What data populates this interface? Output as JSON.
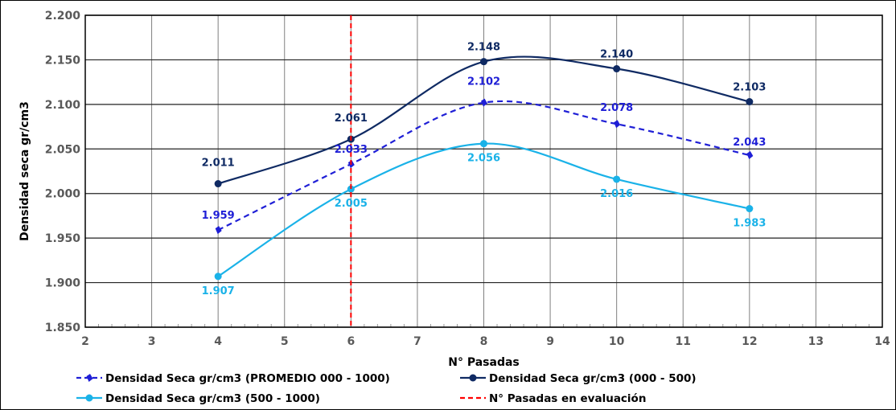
{
  "chart_data": {
    "type": "line",
    "xlabel": "N° Pasadas",
    "ylabel": "Densidad seca gr/cm3",
    "xlim": [
      2,
      14
    ],
    "ylim": [
      1.85,
      2.2
    ],
    "xticks": [
      "2",
      "3",
      "4",
      "5",
      "6",
      "7",
      "8",
      "9",
      "10",
      "11",
      "12",
      "13",
      "14"
    ],
    "yticks": [
      "1.850",
      "1.900",
      "1.950",
      "2.000",
      "2.050",
      "2.100",
      "2.150",
      "2.200"
    ],
    "grid": true,
    "legend_position": "bottom",
    "series": [
      {
        "name": "Densidad Seca gr/cm3 (PROMEDIO 000 - 1000)",
        "color": "#1f1fd6",
        "style": "dashed",
        "x": [
          4,
          6,
          8,
          10,
          12
        ],
        "y": [
          1.959,
          2.033,
          2.102,
          2.078,
          2.043
        ],
        "labels": [
          "1.959",
          "2.033",
          "2.102",
          "2.078",
          "2.043"
        ]
      },
      {
        "name": "Densidad Seca gr/cm3 (000 - 500)",
        "color": "#0f2a63",
        "style": "solid",
        "x": [
          4,
          6,
          8,
          10,
          12
        ],
        "y": [
          2.011,
          2.061,
          2.148,
          2.14,
          2.103
        ],
        "labels": [
          "2.011",
          "2.061",
          "2.148",
          "2.140",
          "2.103"
        ]
      },
      {
        "name": "Densidad Seca gr/cm3 (500 - 1000)",
        "color": "#1ab2e8",
        "style": "solid",
        "x": [
          4,
          6,
          8,
          10,
          12
        ],
        "y": [
          1.907,
          2.005,
          2.056,
          2.016,
          1.983
        ],
        "labels": [
          "1.907",
          "2.005",
          "2.056",
          "2.016",
          "1.983"
        ]
      }
    ],
    "reference_line": {
      "name": "N° Pasadas en evaluación",
      "color": "#ff0000",
      "style": "dashed",
      "x": 6
    }
  }
}
